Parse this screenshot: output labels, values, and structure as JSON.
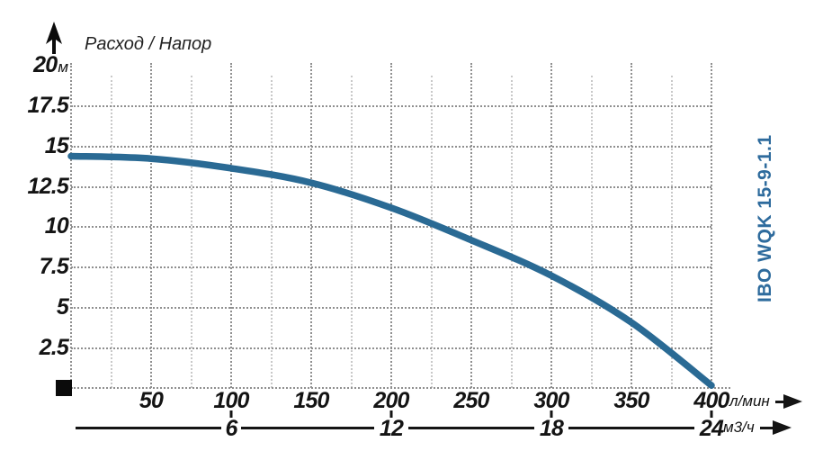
{
  "chart": {
    "title": "Расход / Напор",
    "product_label": "IBO WQK 15-9-1.1",
    "y_axis": {
      "unit": "м",
      "ticks": [
        {
          "label": "20",
          "value": 20
        },
        {
          "label": "17.5",
          "value": 17.5
        },
        {
          "label": "15",
          "value": 15
        },
        {
          "label": "12.5",
          "value": 12.5
        },
        {
          "label": "10",
          "value": 10
        },
        {
          "label": "7.5",
          "value": 7.5
        },
        {
          "label": "5",
          "value": 5
        },
        {
          "label": "2.5",
          "value": 2.5
        }
      ]
    },
    "x_axis": {
      "unit": "л/мин",
      "ticks": [
        {
          "label": "50",
          "value": 50
        },
        {
          "label": "100",
          "value": 100
        },
        {
          "label": "150",
          "value": 150
        },
        {
          "label": "200",
          "value": 200
        },
        {
          "label": "250",
          "value": 250
        },
        {
          "label": "300",
          "value": 300
        },
        {
          "label": "350",
          "value": 350
        },
        {
          "label": "400",
          "value": 400
        }
      ]
    },
    "x_axis2": {
      "unit": "м3/ч",
      "ticks": [
        {
          "label": "6",
          "value": 6
        },
        {
          "label": "12",
          "value": 12
        },
        {
          "label": "18",
          "value": 18
        },
        {
          "label": "24",
          "value": 24
        }
      ]
    },
    "colors": {
      "curve": "#2a6a94",
      "product_label": "#2e6b9d",
      "grid_major": "#8f8f8f",
      "grid_minor": "#c8c8c8",
      "text": "#141414"
    }
  },
  "chart_data": {
    "type": "line",
    "title": "Расход / Напор",
    "series": [
      {
        "name": "IBO WQK 15-9-1.1",
        "x": [
          0,
          50,
          100,
          150,
          200,
          250,
          300,
          350,
          400
        ],
        "y": [
          14.4,
          14.25,
          13.65,
          12.75,
          11.2,
          9.2,
          7.0,
          4.1,
          0.2
        ]
      }
    ],
    "xlabel": "л/мин",
    "x2label": "м3/ч",
    "ylabel": "м",
    "xlim": [
      0,
      400
    ],
    "ylim": [
      0,
      20
    ],
    "x_ticks": [
      50,
      100,
      150,
      200,
      250,
      300,
      350,
      400
    ],
    "y_ticks": [
      2.5,
      5,
      7.5,
      10,
      12.5,
      15,
      17.5,
      20
    ],
    "x2_ticks": [
      6,
      12,
      18,
      24
    ],
    "x2_scale_ratio": "24 м3/ч = 400 л/мин",
    "grid": "dotted",
    "legend": false
  }
}
